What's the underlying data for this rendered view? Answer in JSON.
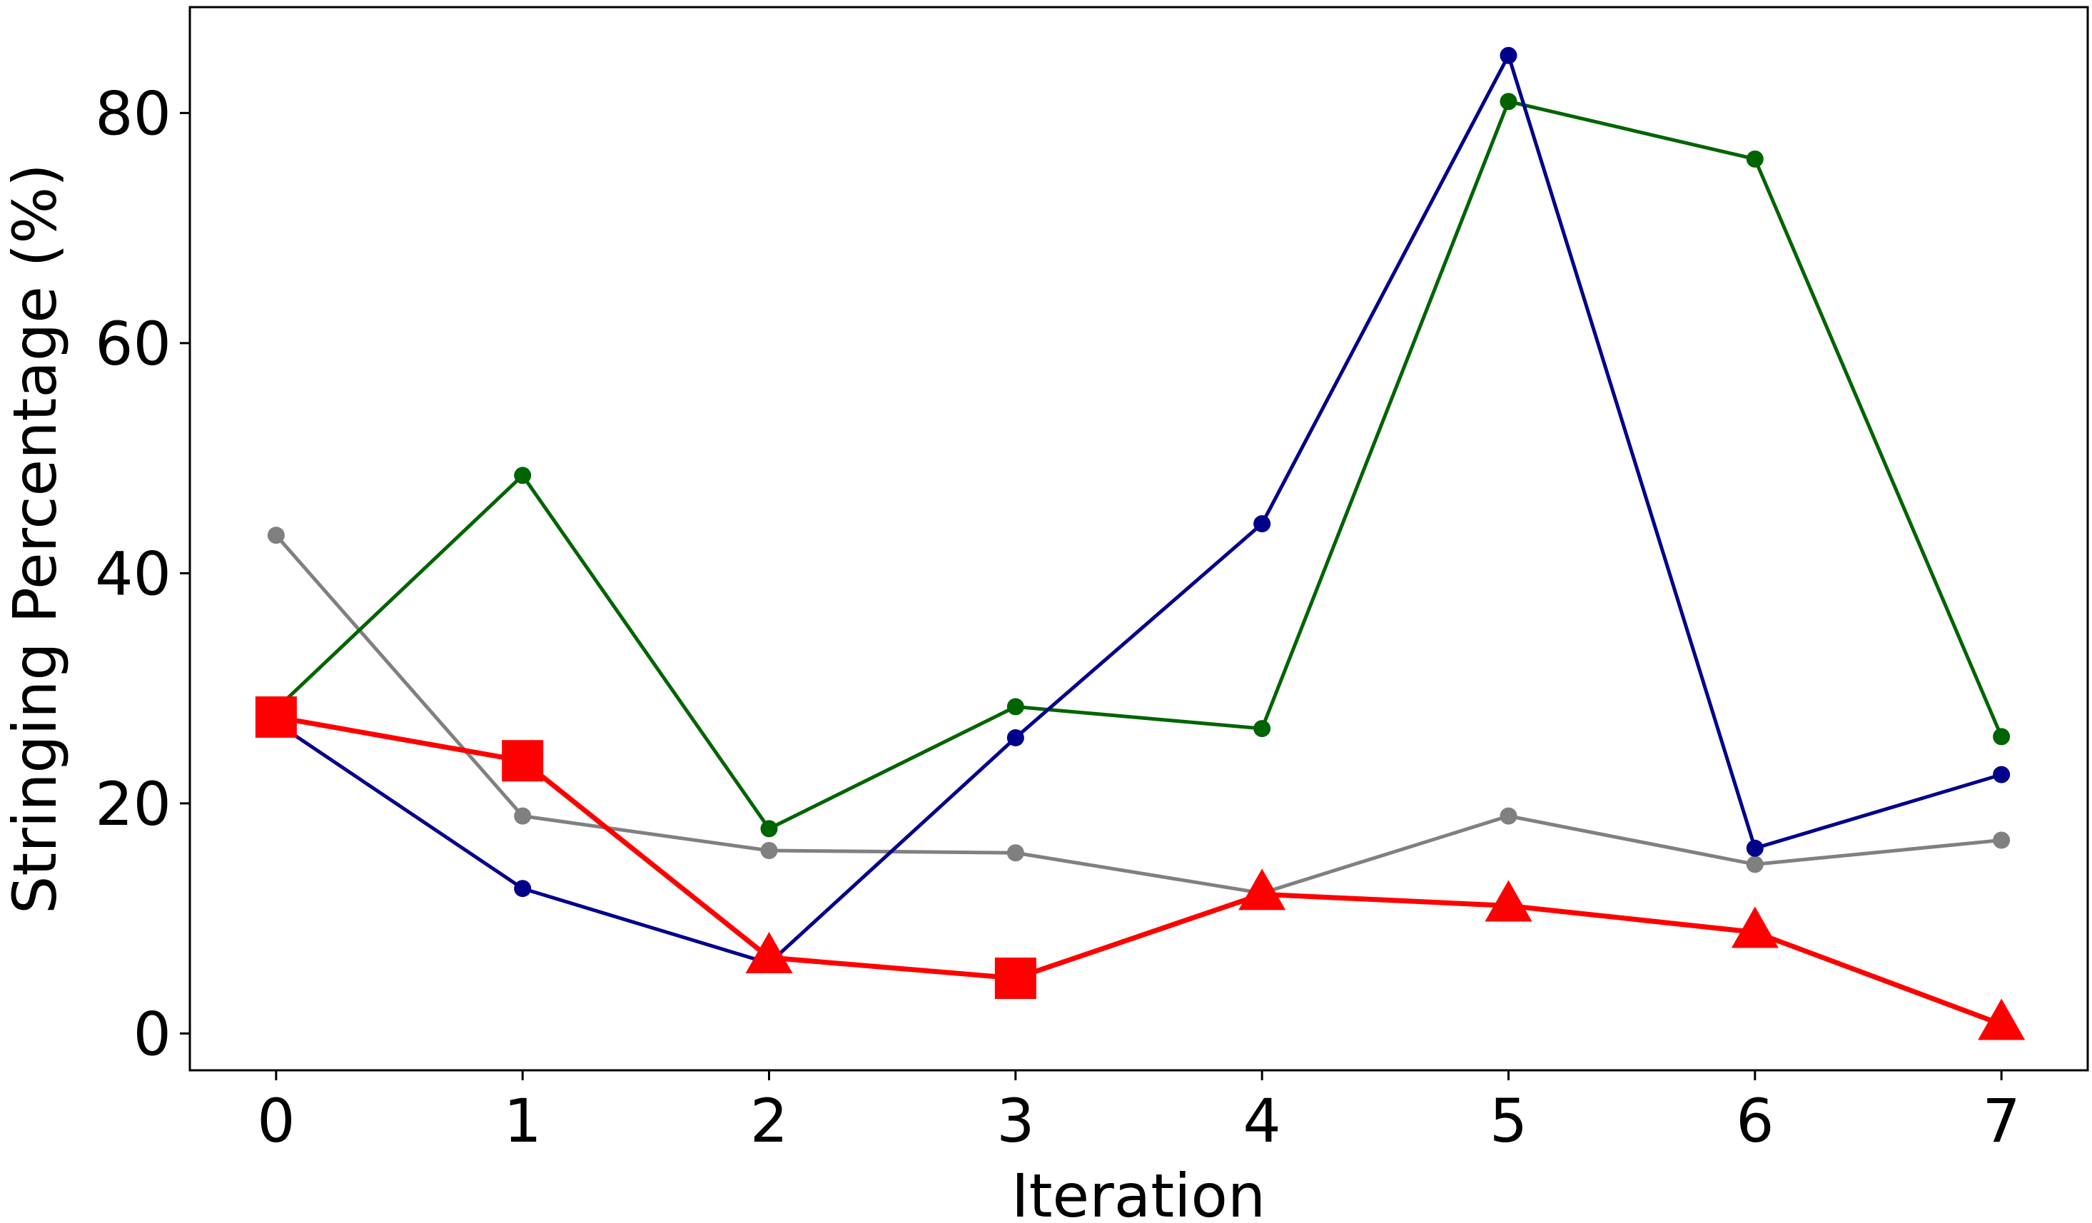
{
  "chart_data": {
    "type": "line",
    "title": "",
    "xlabel": "Iteration",
    "ylabel": "Stringing Percentage (%)",
    "xlim": [
      -0.35,
      7.35
    ],
    "ylim": [
      -3.2,
      89.2
    ],
    "xticks": [
      0,
      1,
      2,
      3,
      4,
      5,
      6,
      7
    ],
    "yticks": [
      0,
      20,
      40,
      60,
      80
    ],
    "x": [
      0,
      1,
      2,
      3,
      4,
      5,
      6,
      7
    ],
    "series": [
      {
        "name": "grey",
        "color": "#808080",
        "marker": "circle",
        "values": [
          43.3,
          18.9,
          15.9,
          15.7,
          12.2,
          18.9,
          14.7,
          16.8
        ]
      },
      {
        "name": "green",
        "color": "#006400",
        "marker": "circle",
        "values": [
          28.2,
          48.5,
          17.8,
          28.4,
          26.5,
          81.0,
          76.0,
          25.8
        ]
      },
      {
        "name": "navy",
        "color": "#00008b",
        "marker": "circle",
        "values": [
          27.0,
          12.6,
          6.1,
          25.7,
          44.3,
          85.0,
          16.1,
          22.5
        ]
      },
      {
        "name": "red",
        "color": "#ff0000",
        "marker": "mixed",
        "markers": [
          "square",
          "square",
          "triangle",
          "square",
          "triangle",
          "triangle",
          "triangle",
          "triangle"
        ],
        "values": [
          27.5,
          23.7,
          6.6,
          4.8,
          12.1,
          11.1,
          8.8,
          0.8
        ]
      }
    ]
  }
}
